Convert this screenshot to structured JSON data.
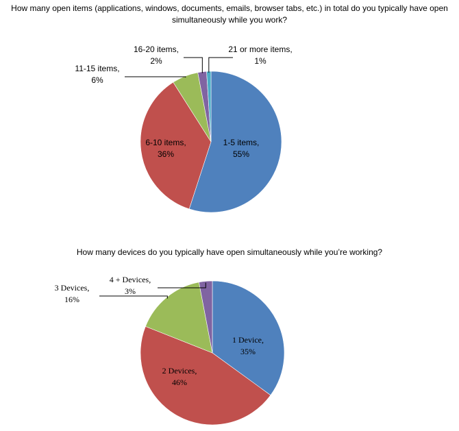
{
  "chart_data": [
    {
      "type": "pie",
      "title": "How many open items (applications, windows, documents, emails, browser tabs, etc.) in total do you typically have open simultaneously while you work?",
      "categories": [
        "1-5 items,",
        "6-10 items,",
        "11-15 items,",
        "16-20 items,",
        "21 or more items,"
      ],
      "values": [
        55,
        36,
        6,
        2,
        1
      ],
      "value_labels": [
        "55%",
        "36%",
        "6%",
        "2%",
        "1%"
      ],
      "colors": [
        "#4f81bd",
        "#c0504d",
        "#9bbb59",
        "#8064a2",
        "#4bacc6"
      ]
    },
    {
      "type": "pie",
      "title": "How many devices do you typically have open simultaneously while you’re working?",
      "categories": [
        "1 Device,",
        "2 Devices,",
        "3 Devices,",
        "4 + Devices,"
      ],
      "values": [
        35,
        46,
        16,
        3
      ],
      "value_labels": [
        "35%",
        "46%",
        "16%",
        "3%"
      ],
      "colors": [
        "#4f81bd",
        "#c0504d",
        "#9bbb59",
        "#8064a2"
      ]
    }
  ]
}
